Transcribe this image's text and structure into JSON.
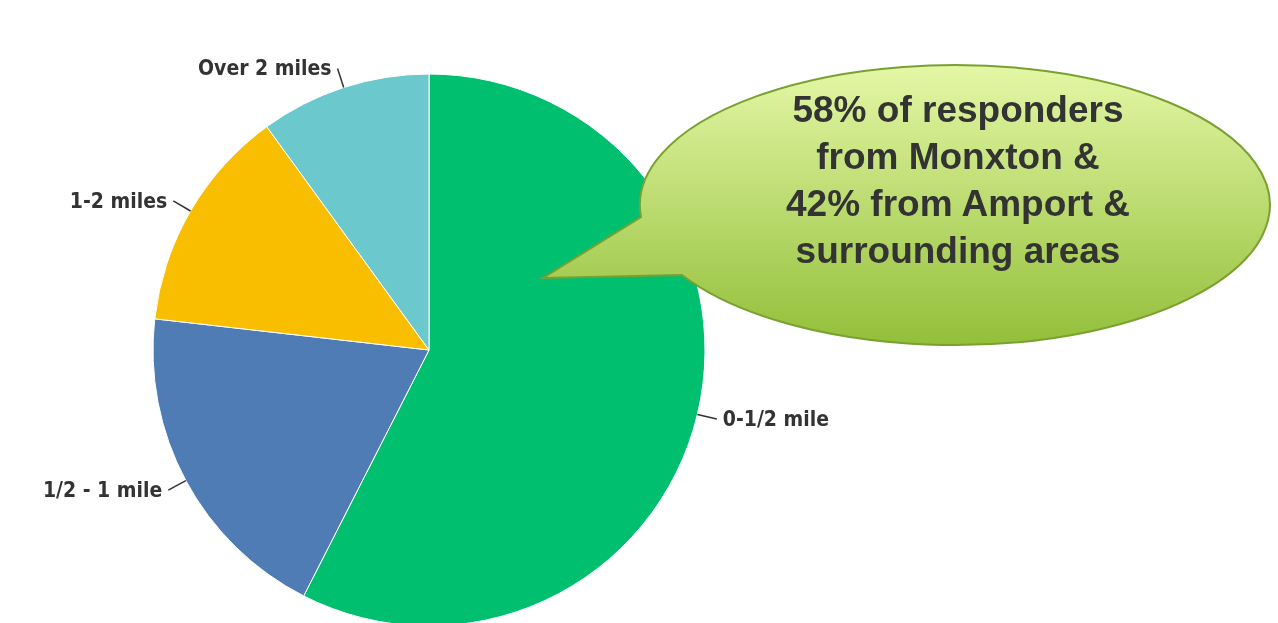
{
  "chart_data": {
    "type": "pie",
    "categories": [
      "0-1/2 mile",
      "1/2 - 1 mile",
      "1-2 miles",
      "Over 2 miles"
    ],
    "values": [
      57.5,
      19.3,
      13.2,
      10.0
    ],
    "colors": [
      "#00bf6f",
      "#507cb6",
      "#f9be00",
      "#6bc8cd"
    ],
    "annotations": [
      "58% of responders from Monxton & 42% from Amport & surrounding areas"
    ]
  }
}
